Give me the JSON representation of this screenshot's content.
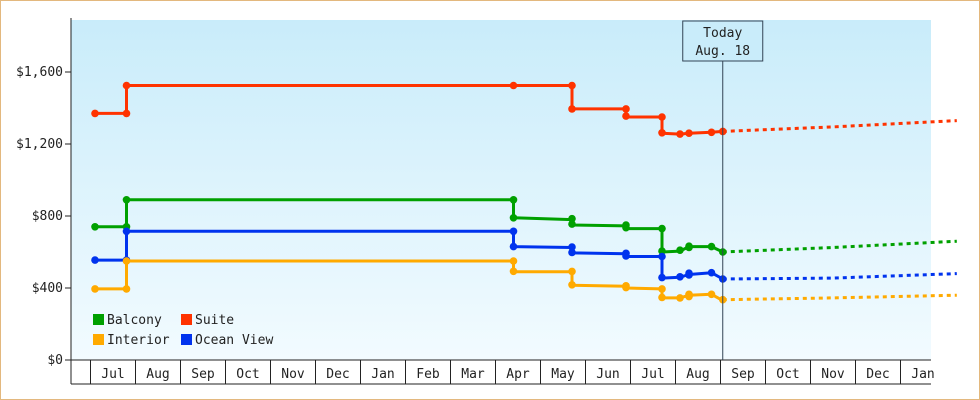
{
  "chart_data": {
    "type": "line",
    "step": true,
    "x_axis_labels": [
      "Jul",
      "Aug",
      "Sep",
      "Oct",
      "Nov",
      "Dec",
      "Jan",
      "Feb",
      "Mar",
      "Apr",
      "May",
      "Jun",
      "Jul",
      "Aug",
      "Sep",
      "Oct",
      "Nov",
      "Dec",
      "Jan"
    ],
    "y_ticks": [
      {
        "value": 0,
        "label": "$0"
      },
      {
        "value": 400,
        "label": "$400"
      },
      {
        "value": 800,
        "label": "$800"
      },
      {
        "value": 1200,
        "label": "$1,200"
      },
      {
        "value": 1600,
        "label": "$1,600"
      }
    ],
    "ylim": [
      0,
      1600
    ],
    "x_unit": "months since start of first July (June = -1)",
    "xlim": [
      -0.4,
      18.75
    ],
    "today": {
      "label_line1": "Today",
      "label_line2": "Aug. 18",
      "x": 13.55
    },
    "legend": {
      "placement": "bottom-left"
    },
    "series": [
      {
        "name": "Suite",
        "color": "#ff3300",
        "points": [
          [
            -0.4,
            1370
          ],
          [
            0.3,
            1370
          ],
          [
            0.3,
            1525
          ],
          [
            8.9,
            1525
          ],
          [
            10.2,
            1525
          ],
          [
            10.2,
            1395
          ],
          [
            11.4,
            1395
          ],
          [
            11.4,
            1350
          ],
          [
            12.2,
            1350
          ],
          [
            12.2,
            1260
          ],
          [
            12.6,
            1255
          ],
          [
            12.8,
            1260
          ],
          [
            13.3,
            1265
          ],
          [
            13.55,
            1270
          ]
        ],
        "markers": [
          [
            -0.4,
            1370
          ],
          [
            0.3,
            1370
          ],
          [
            0.3,
            1525
          ],
          [
            8.9,
            1525
          ],
          [
            10.2,
            1525
          ],
          [
            10.2,
            1395
          ],
          [
            11.4,
            1395
          ],
          [
            11.4,
            1355
          ],
          [
            12.2,
            1350
          ],
          [
            12.2,
            1262
          ],
          [
            12.6,
            1255
          ],
          [
            12.8,
            1260
          ],
          [
            13.3,
            1265
          ],
          [
            13.55,
            1270
          ]
        ],
        "forecast": [
          [
            13.55,
            1270
          ],
          [
            16.0,
            1295
          ],
          [
            18.75,
            1330
          ]
        ]
      },
      {
        "name": "Balcony",
        "color": "#00a000",
        "points": [
          [
            -0.4,
            740
          ],
          [
            0.3,
            740
          ],
          [
            0.3,
            890
          ],
          [
            8.9,
            890
          ],
          [
            8.9,
            790
          ],
          [
            10.2,
            780
          ],
          [
            10.2,
            750
          ],
          [
            11.4,
            745
          ],
          [
            11.4,
            730
          ],
          [
            12.2,
            730
          ],
          [
            12.2,
            600
          ],
          [
            12.6,
            605
          ],
          [
            12.8,
            630
          ],
          [
            13.3,
            630
          ],
          [
            13.55,
            600
          ]
        ],
        "markers": [
          [
            -0.4,
            740
          ],
          [
            0.3,
            740
          ],
          [
            0.3,
            890
          ],
          [
            8.9,
            890
          ],
          [
            8.9,
            790
          ],
          [
            10.2,
            785
          ],
          [
            10.2,
            755
          ],
          [
            11.4,
            750
          ],
          [
            11.4,
            735
          ],
          [
            12.2,
            730
          ],
          [
            12.2,
            605
          ],
          [
            12.6,
            610
          ],
          [
            12.8,
            625
          ],
          [
            12.8,
            632
          ],
          [
            13.3,
            630
          ],
          [
            13.55,
            600
          ]
        ],
        "forecast": [
          [
            13.55,
            600
          ],
          [
            16.0,
            625
          ],
          [
            18.75,
            660
          ]
        ]
      },
      {
        "name": "Ocean View",
        "color": "#0033ee",
        "points": [
          [
            -0.4,
            555
          ],
          [
            0.3,
            555
          ],
          [
            0.3,
            715
          ],
          [
            8.9,
            715
          ],
          [
            8.9,
            630
          ],
          [
            10.2,
            625
          ],
          [
            10.2,
            595
          ],
          [
            11.4,
            590
          ],
          [
            11.4,
            575
          ],
          [
            12.2,
            575
          ],
          [
            12.2,
            455
          ],
          [
            12.6,
            460
          ],
          [
            12.8,
            475
          ],
          [
            13.3,
            485
          ],
          [
            13.55,
            450
          ]
        ],
        "markers": [
          [
            -0.4,
            555
          ],
          [
            0.3,
            555
          ],
          [
            0.3,
            715
          ],
          [
            8.9,
            715
          ],
          [
            8.9,
            630
          ],
          [
            10.2,
            628
          ],
          [
            10.2,
            598
          ],
          [
            11.4,
            593
          ],
          [
            11.4,
            578
          ],
          [
            12.2,
            575
          ],
          [
            12.2,
            458
          ],
          [
            12.6,
            462
          ],
          [
            12.8,
            472
          ],
          [
            12.8,
            482
          ],
          [
            13.3,
            485
          ],
          [
            13.55,
            450
          ]
        ],
        "forecast": [
          [
            13.55,
            450
          ],
          [
            16.0,
            455
          ],
          [
            18.75,
            480
          ]
        ]
      },
      {
        "name": "Interior",
        "color": "#ffaa00",
        "points": [
          [
            -0.4,
            395
          ],
          [
            0.3,
            395
          ],
          [
            0.3,
            550
          ],
          [
            8.9,
            550
          ],
          [
            8.9,
            490
          ],
          [
            10.2,
            490
          ],
          [
            10.2,
            415
          ],
          [
            11.4,
            410
          ],
          [
            11.4,
            400
          ],
          [
            12.2,
            395
          ],
          [
            12.2,
            345
          ],
          [
            12.6,
            345
          ],
          [
            12.8,
            360
          ],
          [
            13.3,
            365
          ],
          [
            13.55,
            330
          ]
        ],
        "markers": [
          [
            -0.4,
            395
          ],
          [
            0.3,
            395
          ],
          [
            0.3,
            550
          ],
          [
            8.9,
            550
          ],
          [
            8.9,
            493
          ],
          [
            10.2,
            492
          ],
          [
            10.2,
            418
          ],
          [
            11.4,
            412
          ],
          [
            11.4,
            402
          ],
          [
            12.2,
            395
          ],
          [
            12.2,
            348
          ],
          [
            12.6,
            345
          ],
          [
            12.8,
            352
          ],
          [
            12.8,
            365
          ],
          [
            13.3,
            365
          ],
          [
            13.55,
            335
          ]
        ],
        "forecast": [
          [
            13.55,
            335
          ],
          [
            16.0,
            345
          ],
          [
            18.75,
            360
          ]
        ]
      }
    ]
  }
}
